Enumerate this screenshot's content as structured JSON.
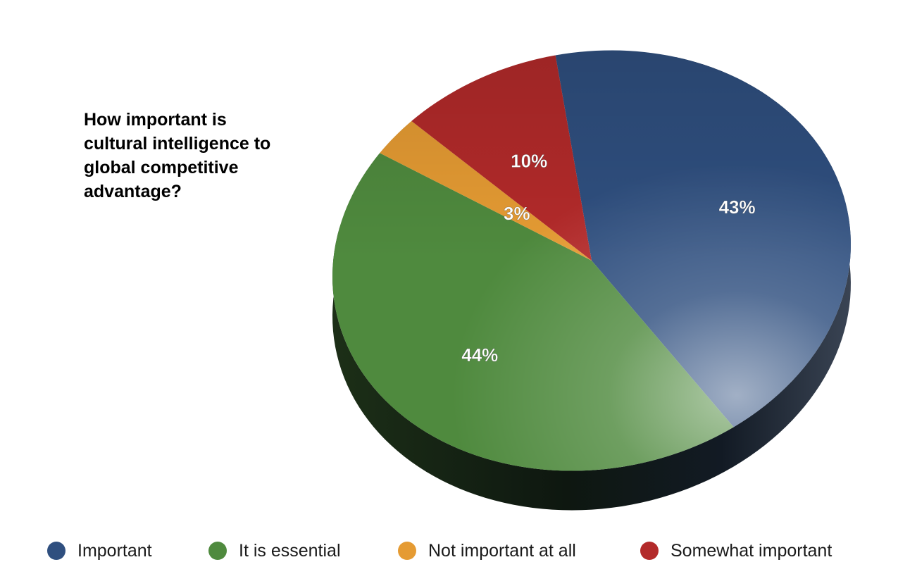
{
  "chart_data": {
    "type": "pie",
    "title": "How important is cultural intelligence to global competitive advantage?",
    "slices": [
      {
        "label": "Important",
        "value": 43,
        "display": "43%",
        "color": "#2f4f7f"
      },
      {
        "label": "It is essential",
        "value": 44,
        "display": "44%",
        "color": "#4f8a3e"
      },
      {
        "label": "Not important at all",
        "value": 3,
        "display": "3%",
        "color": "#e59b33"
      },
      {
        "label": "Somewhat important",
        "value": 10,
        "display": "10%",
        "color": "#b32a2a"
      }
    ],
    "legend": {
      "position": "bottom"
    }
  }
}
